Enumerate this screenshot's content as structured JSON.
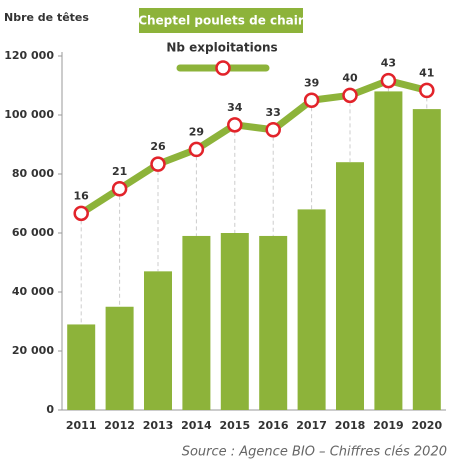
{
  "chart_data": {
    "type": "bar-line",
    "y_axis_label": "Nbre de têtes",
    "source": "Source : Agence BIO – Chiffres clés 2020",
    "categories": [
      "2011",
      "2012",
      "2013",
      "2014",
      "2015",
      "2016",
      "2017",
      "2018",
      "2019",
      "2020"
    ],
    "series": [
      {
        "name": "Cheptel poulets de chair",
        "type": "bar",
        "color": "#8db33a",
        "values": [
          29000,
          35000,
          47000,
          59000,
          60000,
          59000,
          68000,
          84000,
          108000,
          102000
        ]
      },
      {
        "name": "Nb exploitations",
        "type": "line",
        "axis": "y2",
        "color": "#8db33a",
        "marker_color": "#e2232a",
        "values": [
          16,
          21,
          26,
          29,
          34,
          33,
          39,
          40,
          43,
          41
        ]
      }
    ],
    "ylim": [
      0,
      120000
    ],
    "yticks": [
      0,
      {
        "value": 20000,
        "label": "20 000"
      },
      {
        "value": 40000,
        "label": "40 000"
      },
      {
        "value": 60000,
        "label": "60 000"
      },
      {
        "value": 80000,
        "label": "80 000"
      },
      {
        "value": 100000,
        "label": "100 000"
      },
      {
        "value": 120000,
        "label": "120 000"
      }
    ],
    "y2lim": [
      -24,
      48
    ]
  }
}
